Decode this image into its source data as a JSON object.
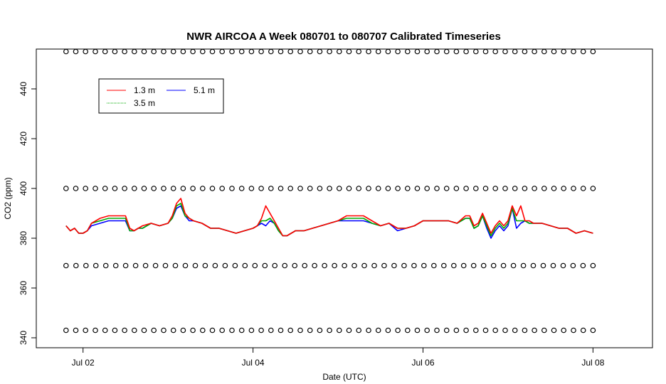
{
  "chart_data": {
    "type": "line",
    "title": "NWR AIRCOA A  Week 080701 to 080707  Calibrated Timeseries",
    "xlabel": "Date (UTC)",
    "ylabel": "CO2 (ppm)",
    "xlim_days": [
      0.45,
      7.7
    ],
    "ylim": [
      336,
      456
    ],
    "x_ticks": [
      {
        "day": 1,
        "label": "Jul 02"
      },
      {
        "day": 3,
        "label": "Jul 04"
      },
      {
        "day": 5,
        "label": "Jul 06"
      },
      {
        "day": 7,
        "label": "Jul 08"
      }
    ],
    "y_ticks": [
      340,
      360,
      380,
      400,
      420,
      440
    ],
    "y_tick_labels": [
      "340",
      "360",
      "380",
      "400",
      "420",
      "440"
    ],
    "grid": false,
    "legend": {
      "placement": "top-left",
      "entries": [
        {
          "name": "1.3 m",
          "color": "#ff0000",
          "dash": "solid"
        },
        {
          "name": "3.5 m",
          "color": "#00aa00",
          "dash": "dotted"
        },
        {
          "name": "5.1 m",
          "color": "#0000ff",
          "dash": "solid"
        }
      ]
    },
    "series": [
      {
        "name": "5.1 m",
        "color": "#0000ff",
        "x_days": [
          0.8,
          0.85,
          0.9,
          0.95,
          1.0,
          1.05,
          1.1,
          1.2,
          1.3,
          1.4,
          1.5,
          1.55,
          1.6,
          1.65,
          1.7,
          1.8,
          1.9,
          2.0,
          2.05,
          2.1,
          2.15,
          2.2,
          2.25,
          2.3,
          2.4,
          2.5,
          2.6,
          2.7,
          2.8,
          2.9,
          3.0,
          3.05,
          3.1,
          3.15,
          3.2,
          3.25,
          3.3,
          3.35,
          3.4,
          3.45,
          3.5,
          3.55,
          3.6,
          3.7,
          3.8,
          3.9,
          4.0,
          4.1,
          4.2,
          4.3,
          4.4,
          4.5,
          4.6,
          4.7,
          4.8,
          4.9,
          5.0,
          5.1,
          5.2,
          5.3,
          5.4,
          5.5,
          5.55,
          5.6,
          5.65,
          5.7,
          5.75,
          5.8,
          5.85,
          5.9,
          5.95,
          6.0,
          6.05,
          6.1,
          6.15,
          6.2,
          6.25,
          6.3,
          6.4,
          6.5,
          6.6,
          6.7,
          6.8,
          6.9,
          7.0
        ],
        "y": [
          385,
          383,
          384,
          382,
          382,
          383,
          385,
          386,
          387,
          387,
          387,
          383,
          383,
          384,
          384,
          386,
          385,
          386,
          388,
          392,
          393,
          389,
          387,
          387,
          386,
          384,
          384,
          383,
          382,
          383,
          384,
          385,
          386,
          385,
          387,
          386,
          383,
          381,
          381,
          382,
          383,
          383,
          383,
          384,
          385,
          386,
          387,
          387,
          387,
          387,
          386,
          385,
          386,
          383,
          384,
          385,
          387,
          387,
          387,
          387,
          386,
          388,
          388,
          384,
          385,
          389,
          384,
          380,
          383,
          385,
          383,
          385,
          392,
          384,
          386,
          387,
          386,
          386,
          386,
          385,
          384,
          384,
          382,
          383,
          382
        ]
      },
      {
        "name": "3.5 m",
        "color": "#00aa00",
        "x_days": [
          0.8,
          0.85,
          0.9,
          0.95,
          1.0,
          1.05,
          1.1,
          1.2,
          1.3,
          1.4,
          1.5,
          1.55,
          1.6,
          1.65,
          1.7,
          1.8,
          1.9,
          2.0,
          2.05,
          2.1,
          2.15,
          2.2,
          2.25,
          2.3,
          2.4,
          2.5,
          2.6,
          2.7,
          2.8,
          2.9,
          3.0,
          3.05,
          3.1,
          3.15,
          3.2,
          3.25,
          3.3,
          3.35,
          3.4,
          3.45,
          3.5,
          3.55,
          3.6,
          3.7,
          3.8,
          3.9,
          4.0,
          4.1,
          4.2,
          4.3,
          4.4,
          4.5,
          4.6,
          4.7,
          4.8,
          4.9,
          5.0,
          5.1,
          5.2,
          5.3,
          5.4,
          5.5,
          5.55,
          5.6,
          5.65,
          5.7,
          5.75,
          5.8,
          5.85,
          5.9,
          5.95,
          6.0,
          6.05,
          6.1,
          6.15,
          6.2,
          6.25,
          6.3,
          6.4,
          6.5,
          6.6,
          6.7,
          6.8,
          6.9,
          7.0
        ],
        "y": [
          385,
          383,
          384,
          382,
          382,
          383,
          386,
          387,
          388,
          388,
          388,
          383,
          383,
          384,
          384,
          386,
          385,
          386,
          388,
          393,
          394,
          389,
          388,
          387,
          386,
          384,
          384,
          383,
          382,
          383,
          384,
          385,
          387,
          387,
          388,
          386,
          383,
          381,
          381,
          382,
          383,
          383,
          383,
          384,
          385,
          386,
          387,
          388,
          388,
          388,
          386,
          385,
          386,
          384,
          384,
          385,
          387,
          387,
          387,
          387,
          386,
          388,
          388,
          384,
          385,
          389,
          385,
          381,
          384,
          386,
          384,
          386,
          392,
          387,
          387,
          387,
          386,
          386,
          386,
          385,
          384,
          384,
          382,
          383,
          382
        ]
      },
      {
        "name": "1.3 m",
        "color": "#ff0000",
        "x_days": [
          0.8,
          0.85,
          0.9,
          0.95,
          1.0,
          1.05,
          1.1,
          1.2,
          1.3,
          1.4,
          1.5,
          1.55,
          1.6,
          1.65,
          1.7,
          1.8,
          1.9,
          2.0,
          2.05,
          2.1,
          2.15,
          2.2,
          2.25,
          2.3,
          2.4,
          2.5,
          2.6,
          2.7,
          2.8,
          2.9,
          3.0,
          3.05,
          3.1,
          3.15,
          3.2,
          3.25,
          3.3,
          3.35,
          3.4,
          3.45,
          3.5,
          3.55,
          3.6,
          3.7,
          3.8,
          3.9,
          4.0,
          4.1,
          4.2,
          4.3,
          4.4,
          4.5,
          4.6,
          4.7,
          4.8,
          4.9,
          5.0,
          5.1,
          5.2,
          5.3,
          5.4,
          5.5,
          5.55,
          5.6,
          5.65,
          5.7,
          5.75,
          5.8,
          5.85,
          5.9,
          5.95,
          6.0,
          6.05,
          6.1,
          6.15,
          6.2,
          6.25,
          6.3,
          6.4,
          6.5,
          6.6,
          6.7,
          6.8,
          6.9,
          7.0
        ],
        "y": [
          385,
          383,
          384,
          382,
          382,
          383,
          386,
          388,
          389,
          389,
          389,
          384,
          383,
          384,
          385,
          386,
          385,
          386,
          389,
          394,
          396,
          390,
          388,
          387,
          386,
          384,
          384,
          383,
          382,
          383,
          384,
          385,
          388,
          393,
          390,
          387,
          384,
          381,
          381,
          382,
          383,
          383,
          383,
          384,
          385,
          386,
          387,
          389,
          389,
          389,
          387,
          385,
          386,
          384,
          384,
          385,
          387,
          387,
          387,
          387,
          386,
          389,
          389,
          385,
          386,
          390,
          386,
          382,
          385,
          387,
          385,
          387,
          393,
          389,
          393,
          387,
          387,
          386,
          386,
          385,
          384,
          384,
          382,
          383,
          382
        ]
      }
    ],
    "marker_rows": [
      {
        "y": 455,
        "count": 55
      },
      {
        "y": 400,
        "count": 55
      },
      {
        "y": 369,
        "count": 54
      },
      {
        "y": 343,
        "count": 55
      }
    ]
  }
}
